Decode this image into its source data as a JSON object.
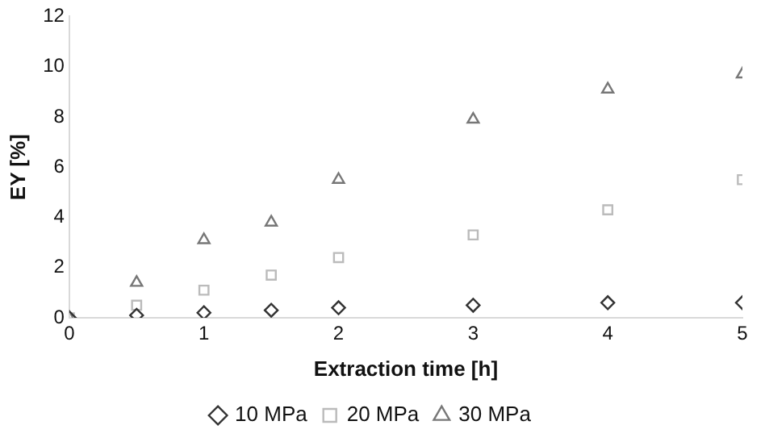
{
  "chart_data": {
    "type": "scatter",
    "xlabel": "Extraction time [h]",
    "ylabel": "EY [%]",
    "xlim": [
      0,
      5
    ],
    "xticks": [
      0,
      1,
      2,
      3,
      4,
      5
    ],
    "ylim": [
      0,
      12
    ],
    "yticks": [
      0,
      2,
      4,
      6,
      8,
      10,
      12
    ],
    "grid": false,
    "legend": "bottom",
    "x": [
      0,
      0.5,
      1,
      1.5,
      2,
      3,
      4,
      5
    ],
    "series": [
      {
        "name": "10 MPa",
        "color": "#333333",
        "marker": "diamond",
        "values": [
          0,
          0.1,
          0.2,
          0.3,
          0.4,
          0.5,
          0.6,
          0.6
        ]
      },
      {
        "name": "20 MPa",
        "color": "#bbbbbb",
        "marker": "square",
        "values": [
          0,
          0.5,
          1.1,
          1.7,
          2.4,
          3.3,
          4.3,
          5.5
        ]
      },
      {
        "name": "30 MPa",
        "color": "#777777",
        "marker": "triangle",
        "values": [
          0,
          1.4,
          3.1,
          3.8,
          5.5,
          7.9,
          9.1,
          9.7
        ]
      }
    ]
  }
}
